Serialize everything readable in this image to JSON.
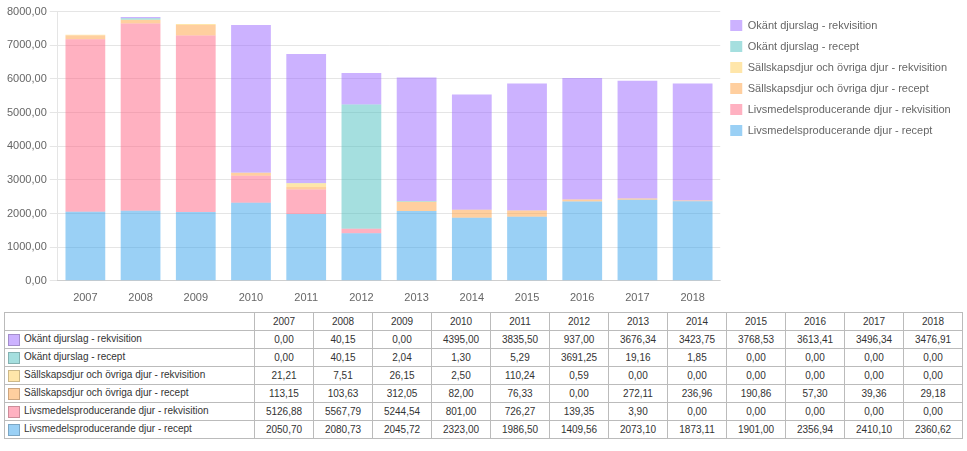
{
  "chart_data": {
    "type": "bar",
    "stacked": true,
    "grid": true,
    "legend": "upper right",
    "categories": [
      "2007",
      "2008",
      "2009",
      "2010",
      "2011",
      "2012",
      "2013",
      "2014",
      "2015",
      "2016",
      "2017",
      "2018"
    ],
    "ylim": [
      0,
      8000
    ],
    "yticks": [
      {
        "value": 0,
        "label": "0,00"
      },
      {
        "value": 1000,
        "label": "1000,00"
      },
      {
        "value": 2000,
        "label": "2000,00"
      },
      {
        "value": 3000,
        "label": "3000,00"
      },
      {
        "value": 4000,
        "label": "4000,00"
      },
      {
        "value": 5000,
        "label": "5000,00"
      },
      {
        "value": 6000,
        "label": "6000,00"
      },
      {
        "value": 7000,
        "label": "7000,00"
      },
      {
        "value": 8000,
        "label": "8000,00"
      }
    ],
    "series": [
      {
        "name": "Livsmedelsproducerande djur - recept",
        "values": [
          2050.7,
          2080.73,
          2045.72,
          2323.0,
          1986.5,
          1409.56,
          2073.1,
          1873.11,
          1901.0,
          2356.94,
          2410.1,
          2360.62
        ],
        "value_labels": [
          "2050,70",
          "2080,73",
          "2045,72",
          "2323,00",
          "1986,50",
          "1409,56",
          "2073,10",
          "1873,11",
          "1901,00",
          "2356,94",
          "2410,10",
          "2360,62"
        ]
      },
      {
        "name": "Livsmedelsproducerande djur - rekvisition",
        "values": [
          5126.88,
          5567.79,
          5244.54,
          801.0,
          726.27,
          139.35,
          3.9,
          0.0,
          0.0,
          0.0,
          0.0,
          0.0
        ],
        "value_labels": [
          "5126,88",
          "5567,79",
          "5244,54",
          "801,00",
          "726,27",
          "139,35",
          "3,90",
          "0,00",
          "0,00",
          "0,00",
          "0,00",
          "0,00"
        ]
      },
      {
        "name": "Sällskapsdjur och övriga djur - recept",
        "values": [
          113.15,
          103.63,
          312.05,
          82.0,
          76.33,
          0.0,
          272.11,
          236.96,
          190.86,
          57.3,
          39.36,
          29.18
        ],
        "value_labels": [
          "113,15",
          "103,63",
          "312,05",
          "82,00",
          "76,33",
          "0,00",
          "272,11",
          "236,96",
          "190,86",
          "57,30",
          "39,36",
          "29,18"
        ]
      },
      {
        "name": "Sällskapsdjur och övriga djur - rekvisition",
        "values": [
          21.21,
          7.51,
          26.15,
          2.5,
          110.24,
          0.59,
          0.0,
          0.0,
          0.0,
          0.0,
          0.0,
          0.0
        ],
        "value_labels": [
          "21,21",
          "7,51",
          "26,15",
          "2,50",
          "110,24",
          "0,59",
          "0,00",
          "0,00",
          "0,00",
          "0,00",
          "0,00",
          "0,00"
        ]
      },
      {
        "name": "Okänt djurslag - recept",
        "values": [
          0.0,
          40.15,
          2.04,
          1.3,
          5.29,
          3691.25,
          19.16,
          1.85,
          0.0,
          0.0,
          0.0,
          0.0
        ],
        "value_labels": [
          "0,00",
          "40,15",
          "2,04",
          "1,30",
          "5,29",
          "3691,25",
          "19,16",
          "1,85",
          "0,00",
          "0,00",
          "0,00",
          "0,00"
        ]
      },
      {
        "name": "Okänt djurslag - rekvisition",
        "values": [
          0.0,
          40.15,
          0.0,
          4395.0,
          3835.5,
          937.0,
          3676.34,
          3423.75,
          3768.53,
          3613.41,
          3496.34,
          3476.91
        ],
        "value_labels": [
          "0,00",
          "40,15",
          "0,00",
          "4395,00",
          "3835,50",
          "937,00",
          "3676,34",
          "3423,75",
          "3768,53",
          "3613,41",
          "3496,34",
          "3476,91"
        ]
      }
    ]
  }
}
